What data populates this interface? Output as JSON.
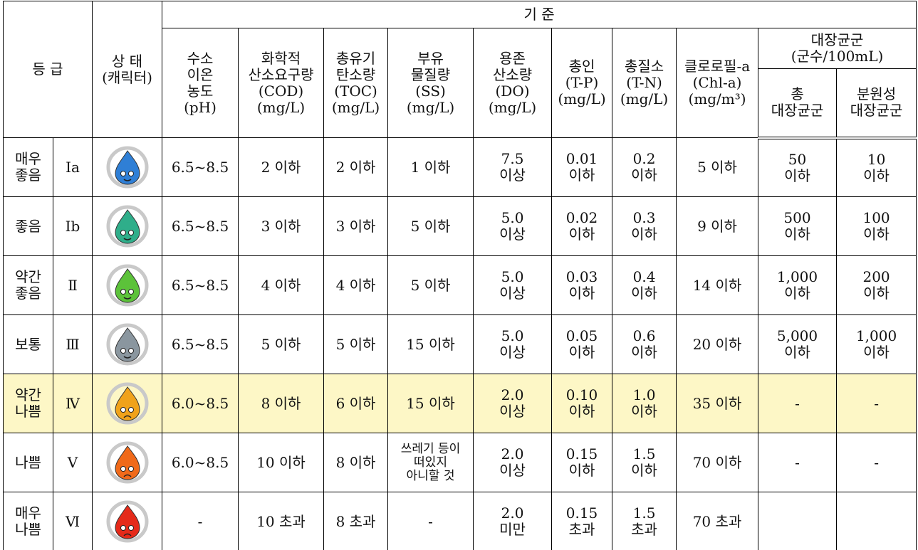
{
  "header": {
    "grade": "등 급",
    "state": "상 태\n(캐릭터)",
    "criteria": "기          준",
    "columns": [
      "수소\n이온\n농도\n(pH)",
      "화학적\n산소요구량\n(COD)\n(mg/L)",
      "총유기\n탄소량\n(TOC)\n(mg/L)",
      "부유\n물질량\n(SS)\n(mg/L)",
      "용존\n산소량\n(DO)\n(mg/L)",
      "총인\n(T-P)\n(mg/L)",
      "총질소\n(T-N)\n(mg/L)",
      "클로로필-a\n(Chl-a)\n(mg/m³)"
    ],
    "coliform": {
      "title": "대장균군\n(군수/100mL)",
      "total": "총\n대장균군",
      "fecal": "분원성\n대장균군"
    }
  },
  "rows": [
    {
      "level": "매우\n좋음",
      "grade": "Ia",
      "cells": [
        "6.5~8.5",
        "2 이하",
        "2 이하",
        "1 이하",
        "7.5\n이상",
        "0.01\n이하",
        "0.2\n이하",
        "5 이하",
        "50\n이하",
        "10\n이하"
      ]
    },
    {
      "level": "좋음",
      "grade": "Ib",
      "cells": [
        "6.5~8.5",
        "3 이하",
        "3 이하",
        "5 이하",
        "5.0\n이상",
        "0.02\n이하",
        "0.3\n이하",
        "9 이하",
        "500\n이하",
        "100\n이하"
      ]
    },
    {
      "level": "약간\n좋음",
      "grade": "Ⅱ",
      "cells": [
        "6.5~8.5",
        "4 이하",
        "4 이하",
        "5 이하",
        "5.0\n이상",
        "0.03\n이하",
        "0.4\n이하",
        "14 이하",
        "1,000\n이하",
        "200\n이하"
      ]
    },
    {
      "level": "보통",
      "grade": "Ⅲ",
      "cells": [
        "6.5~8.5",
        "5 이하",
        "5 이하",
        "15 이하",
        "5.0\n이상",
        "0.05\n이하",
        "0.6\n이하",
        "20 이하",
        "5,000\n이하",
        "1,000\n이하"
      ]
    },
    {
      "level": "약간\n나쁨",
      "grade": "Ⅳ",
      "cells": [
        "6.0~8.5",
        "8 이하",
        "6 이하",
        "15 이하",
        "2.0\n이상",
        "0.10\n이하",
        "1.0\n이하",
        "35 이하",
        "-",
        "-"
      ]
    },
    {
      "level": "나쁨",
      "grade": "Ⅴ",
      "cells": [
        "6.0~8.5",
        "10 이하",
        "8 이하",
        "쓰레기 등이\n떠있지\n아니할 것",
        "2.0\n이상",
        "0.15\n이하",
        "1.5\n이하",
        "70 이하",
        "-",
        "-"
      ]
    },
    {
      "level": "매우\n나쁨",
      "grade": "Ⅵ",
      "cells": [
        "-",
        "10 초과",
        "8 초과",
        "-",
        "2.0\n미만",
        "0.15\n초과",
        "1.5\n초과",
        "70 초과"
      ]
    }
  ]
}
